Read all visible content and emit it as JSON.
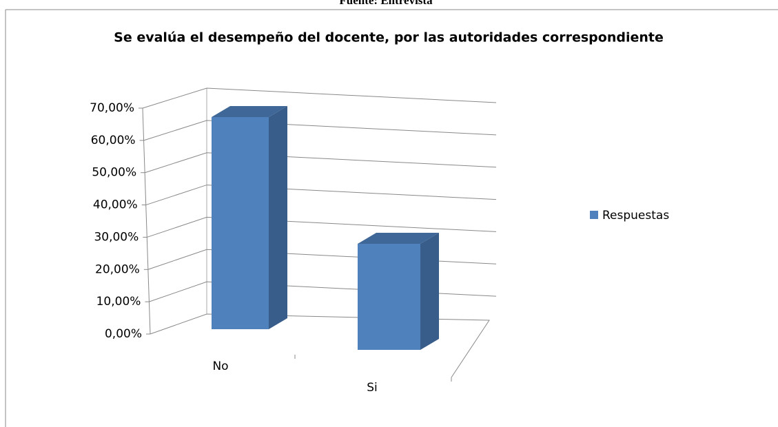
{
  "source": "Fuente: Entrevista",
  "chart_data": {
    "type": "bar3d",
    "title": "Se evalúa el desempeño del docente, por las autoridades correspondiente",
    "categories": [
      "No",
      "Si"
    ],
    "series": [
      {
        "name": "Respuestas",
        "color": "#4f81bd",
        "values": [
          66.67,
          33.33
        ]
      }
    ],
    "ylim": [
      0,
      70
    ],
    "yticks": [
      {
        "value": 0,
        "label": "0,00%"
      },
      {
        "value": 10,
        "label": "10,00%"
      },
      {
        "value": 20,
        "label": "20,00%"
      },
      {
        "value": 30,
        "label": "30,00%"
      },
      {
        "value": 40,
        "label": "40,00%"
      },
      {
        "value": 50,
        "label": "50,00%"
      },
      {
        "value": 60,
        "label": "60,00%"
      },
      {
        "value": 70,
        "label": "70,00%"
      }
    ],
    "grid": true,
    "legend": "right"
  }
}
